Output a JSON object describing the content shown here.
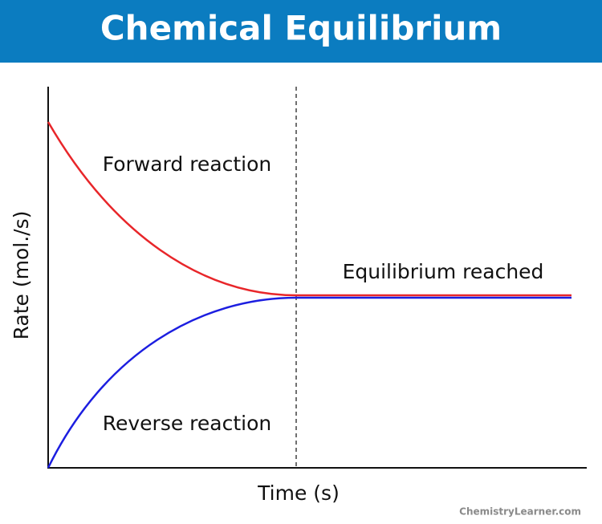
{
  "header": {
    "title": "Chemical Equilibrium"
  },
  "axes": {
    "y_label": "Rate (mol./s)",
    "x_label": "Time (s)"
  },
  "labels": {
    "forward": "Forward reaction",
    "equilibrium": "Equilibrium reached",
    "reverse": "Reverse reaction"
  },
  "watermark": "ChemistryLearner.com"
}
